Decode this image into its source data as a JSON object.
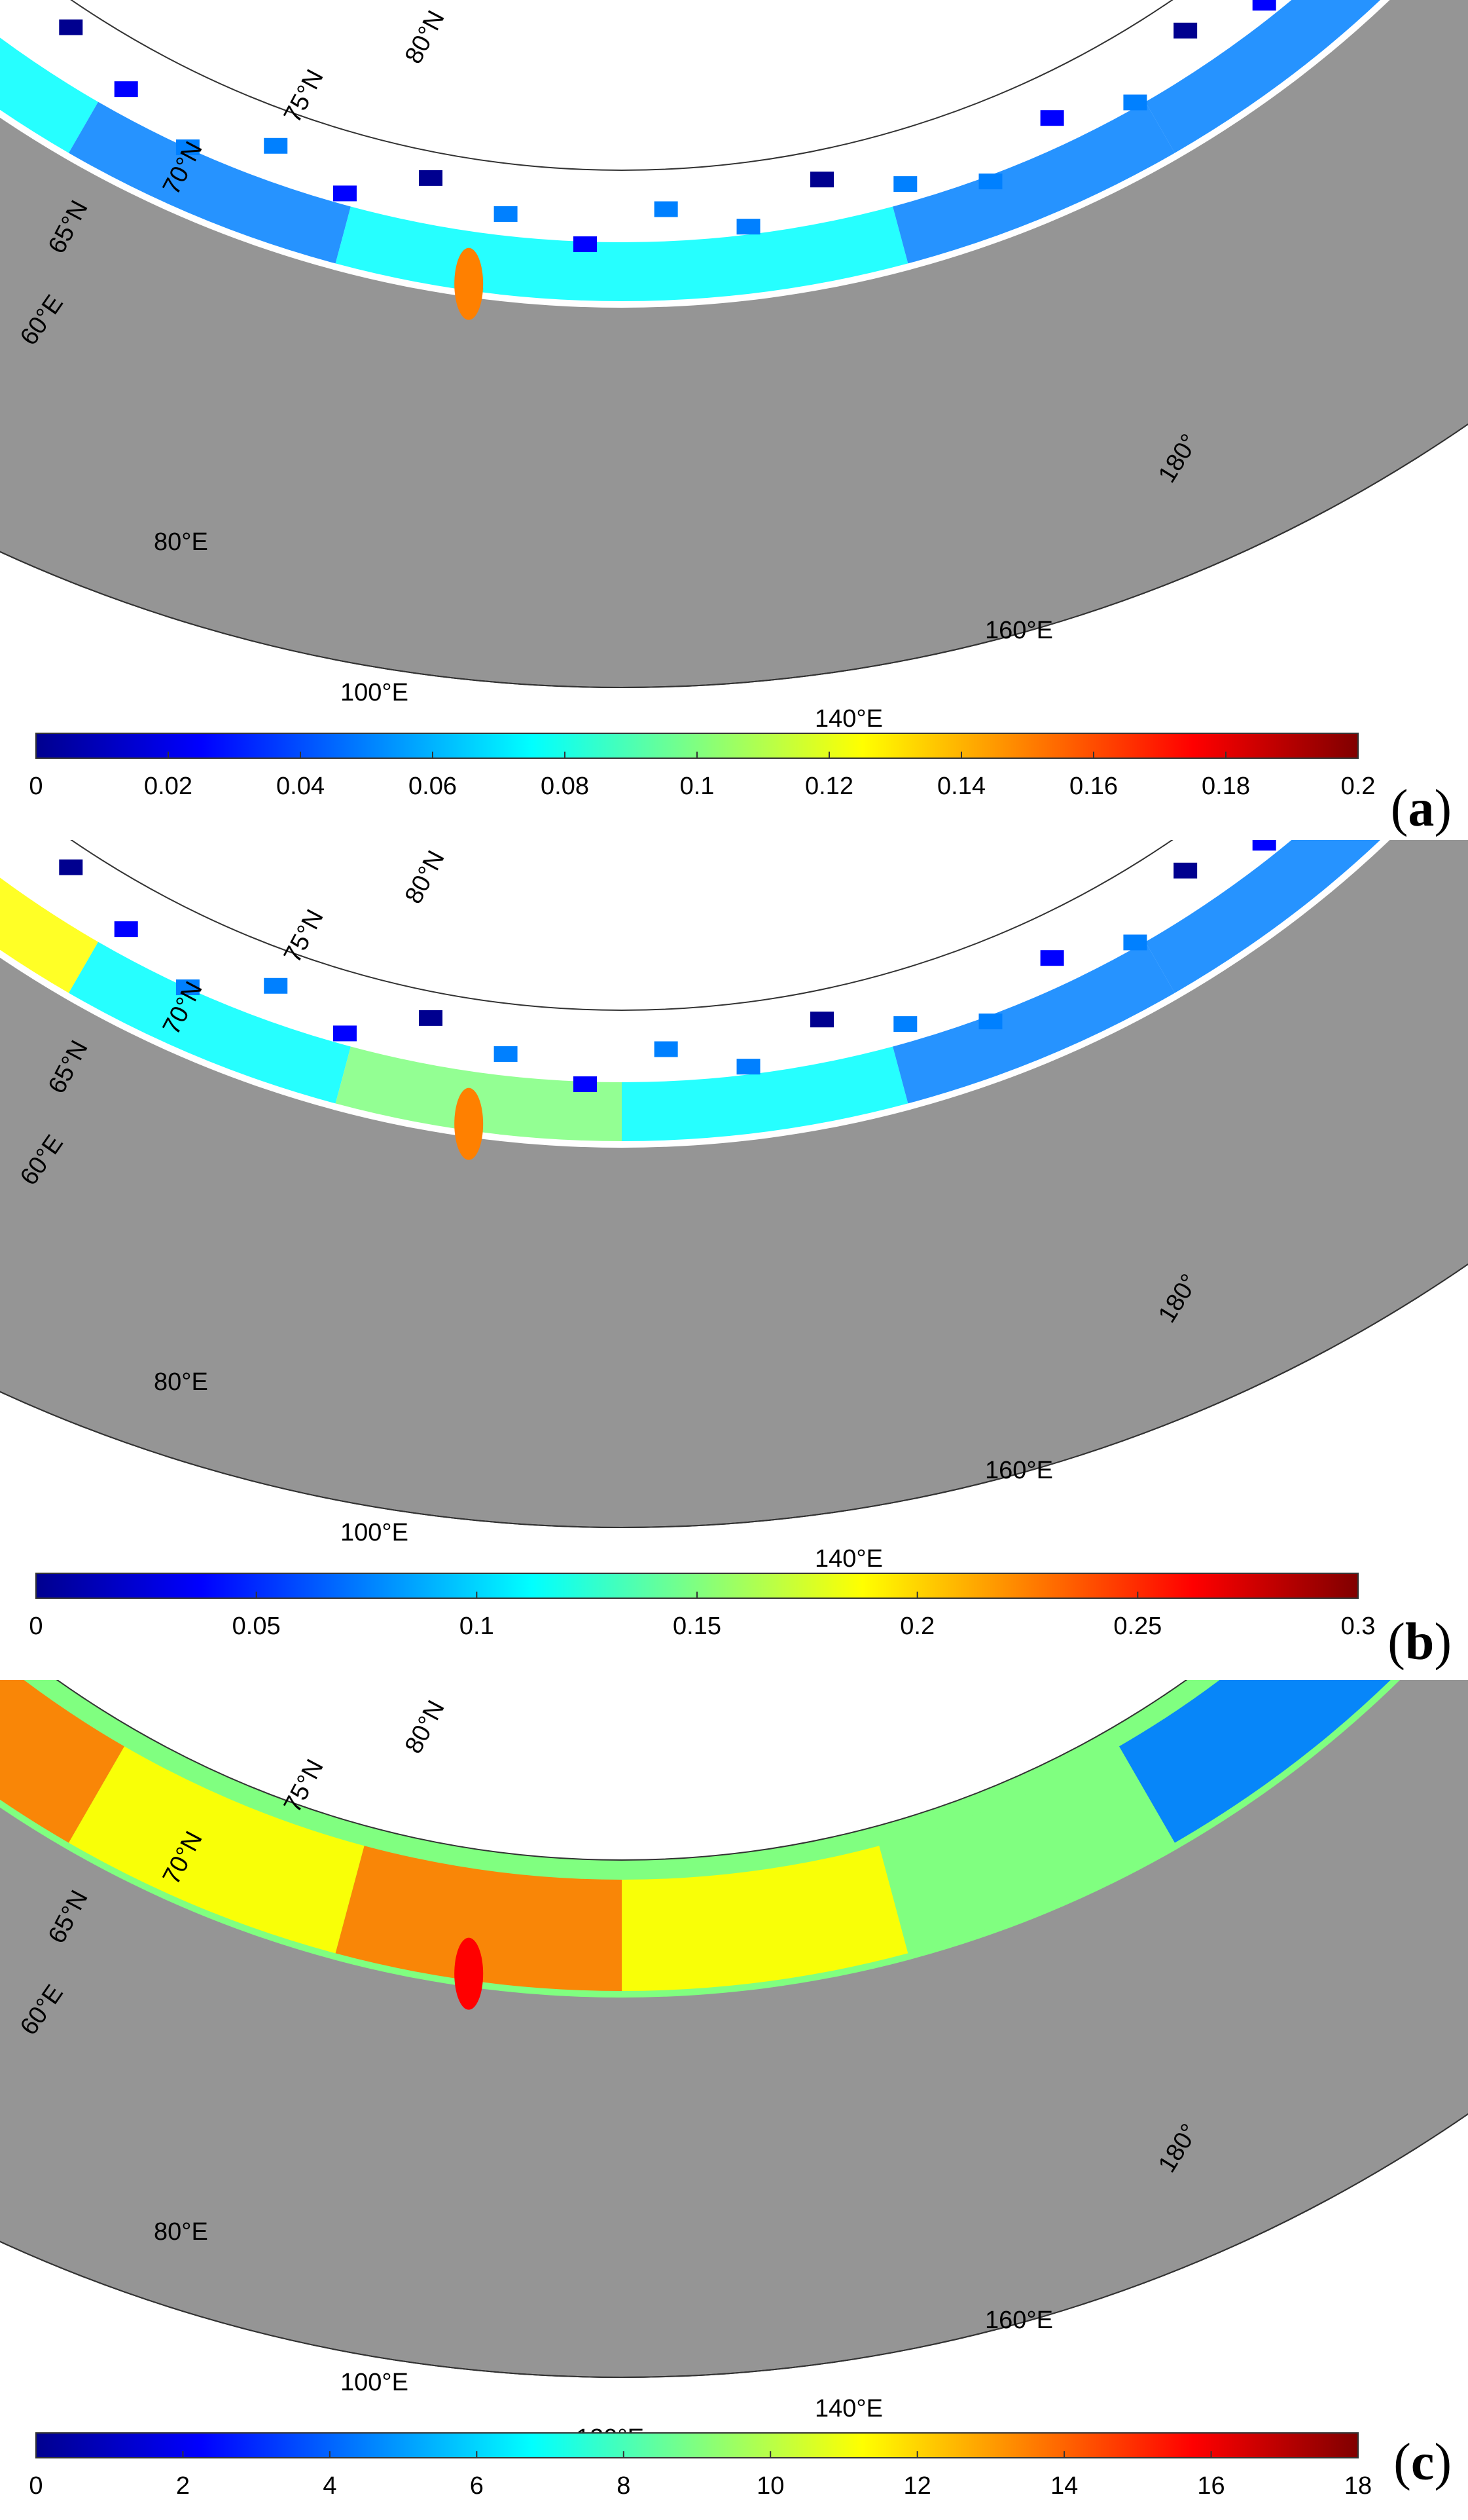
{
  "colors": {
    "land": "#959595",
    "coast": "#111111",
    "background": "#ffffff",
    "jet": [
      "#00008f",
      "#0000ff",
      "#0080ff",
      "#00ffff",
      "#80ff80",
      "#ffff00",
      "#ff8000",
      "#ff0000",
      "#800000"
    ]
  },
  "map_labels": {
    "lat": [
      "65°N",
      "70°N",
      "75°N",
      "80°N"
    ],
    "lon": [
      "60°E",
      "80°E",
      "100°E",
      "120°E",
      "140°E",
      "160°E",
      "180°"
    ]
  },
  "panels": [
    {
      "id": "a",
      "label_open": "(",
      "label_letter": "a",
      "label_close": ")",
      "colorbar": {
        "min": 0,
        "max": 0.2,
        "ticks": [
          "0",
          "0.02",
          "0.04",
          "0.06",
          "0.08",
          "0.1",
          "0.12",
          "0.14",
          "0.16",
          "0.18",
          "0.2"
        ]
      }
    },
    {
      "id": "b",
      "label_open": "(",
      "label_letter": "b",
      "label_close": ")",
      "colorbar": {
        "min": 0,
        "max": 0.3,
        "ticks": [
          "0",
          "0.05",
          "0.1",
          "0.15",
          "0.2",
          "0.25",
          "0.3"
        ]
      }
    },
    {
      "id": "c",
      "label_open": "(",
      "label_letter": "c",
      "label_close": ")",
      "colorbar": {
        "min": 0,
        "max": 18,
        "ticks": [
          "0",
          "2",
          "4",
          "6",
          "8",
          "10",
          "12",
          "14",
          "16",
          "18"
        ]
      }
    }
  ]
}
